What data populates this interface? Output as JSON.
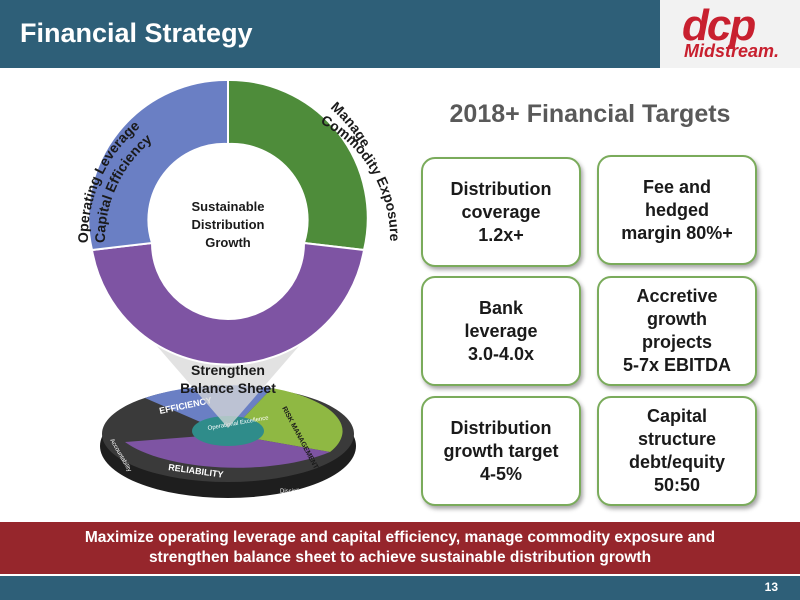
{
  "header": {
    "title": "Financial Strategy"
  },
  "logo": {
    "mark": "dcp",
    "name": "Midstream."
  },
  "donut": {
    "center_lines": [
      "Sustainable",
      "Distribution",
      "Growth"
    ],
    "segment_labels": {
      "left_line1": "Operating Leverage",
      "left_line2": "Capital Efficiency",
      "right_line1": "Manage",
      "right_line2": "Commodity Exposure",
      "bottom_line1": "Strengthen",
      "bottom_line2": "Balance Sheet"
    },
    "colors": {
      "left": "#6a7fc4",
      "right": "#4e8c3a",
      "bottom": "#7e54a3"
    }
  },
  "platter": {
    "labels": [
      "EFFICIENCY",
      "RISK MANAGEMENT",
      "RELIABILITY",
      "Operational Excellence",
      "Accountability",
      "Disciplines"
    ]
  },
  "targets": {
    "title": "2018+ Financial Targets",
    "items": [
      {
        "text": "Distribution\ncoverage\n1.2x+"
      },
      {
        "text": "Fee and\nhedged\nmargin 80%+"
      },
      {
        "text": "Bank\nleverage\n3.0-4.0x"
      },
      {
        "text": "Accretive\ngrowth\nprojects\n5-7x EBITDA"
      },
      {
        "text": "Distribution\ngrowth target\n4-5%"
      },
      {
        "text": "Capital\nstructure\ndebt/equity\n50:50"
      }
    ],
    "border_color": "#7aab5b"
  },
  "banner": {
    "line1": "Maximize operating leverage and capital efficiency, manage commodity exposure and",
    "line2": "strengthen balance sheet to achieve sustainable distribution growth"
  },
  "footer": {
    "page_number": "13"
  }
}
